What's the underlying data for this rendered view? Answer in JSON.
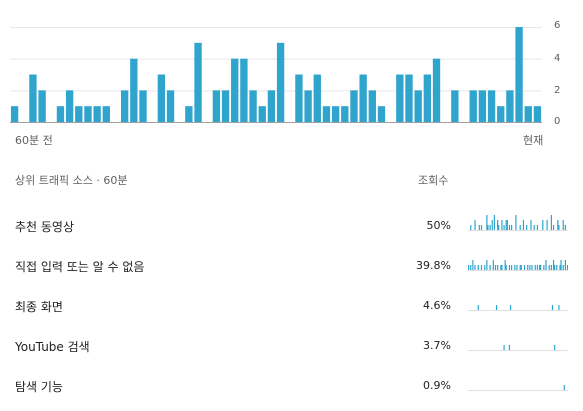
{
  "chart_data": {
    "type": "bar",
    "x_start_label": "60분 전",
    "x_end_label": "현재",
    "y_ticks": [
      "6",
      "4",
      "2",
      "0"
    ],
    "ylim": [
      0,
      6
    ],
    "grid": true,
    "color": "#2fa4cd",
    "values": [
      1,
      0,
      3,
      2,
      0,
      1,
      2,
      1,
      1,
      1,
      1,
      0,
      2,
      4,
      2,
      0,
      3,
      2,
      0,
      1,
      5,
      0,
      2,
      2,
      4,
      4,
      2,
      1,
      2,
      5,
      0,
      3,
      2,
      3,
      1,
      1,
      1,
      2,
      3,
      2,
      1,
      0,
      3,
      3,
      2,
      3,
      4,
      0,
      2,
      0,
      2,
      2,
      2,
      1,
      2,
      6,
      1,
      1
    ]
  },
  "table": {
    "header_left": "상위 트래픽 소스 · 60분",
    "header_right": "조회수",
    "rows": [
      {
        "label": "추천 동영상",
        "pct": "50%",
        "spark": [
          0,
          0,
          1,
          0,
          0,
          0,
          2,
          0,
          0,
          0,
          1,
          0,
          1,
          0,
          0,
          0,
          0,
          3,
          1,
          0,
          1,
          0,
          2,
          0,
          3,
          0,
          0,
          2,
          1,
          0,
          0,
          2,
          0,
          1,
          0,
          2,
          2,
          0,
          1,
          0,
          1,
          0,
          0,
          0,
          3,
          0,
          0,
          0,
          1,
          0,
          0,
          2,
          0,
          0,
          1,
          0,
          0,
          0,
          2,
          0,
          0,
          1,
          0,
          0,
          1,
          0,
          0,
          0,
          0,
          2,
          0,
          0,
          0,
          2,
          0,
          0,
          0,
          3,
          0,
          1,
          0,
          0,
          0,
          2,
          1,
          0,
          0,
          0,
          2,
          0,
          1,
          0,
          0
        ]
      },
      {
        "label": "직접 입력 또는 알 수 없음",
        "pct": "39.8%",
        "spark": [
          1,
          0,
          1,
          0,
          2,
          0,
          1,
          0,
          0,
          1,
          0,
          0,
          1,
          0,
          0,
          1,
          0,
          2,
          0,
          0,
          1,
          0,
          0,
          2,
          0,
          1,
          0,
          1,
          0,
          0,
          1,
          1,
          0,
          0,
          2,
          1,
          0,
          0,
          1,
          0,
          1,
          0,
          0,
          1,
          0,
          1,
          0,
          0,
          1,
          1,
          0,
          0,
          1,
          0,
          0,
          1,
          0,
          1,
          0,
          1,
          0,
          0,
          1,
          0,
          1,
          0,
          1,
          1,
          0,
          0,
          1,
          0,
          2,
          0,
          0,
          1,
          0,
          1,
          0,
          2,
          1,
          0,
          1,
          0,
          0,
          1,
          2,
          0,
          1,
          0,
          2,
          0,
          1
        ]
      },
      {
        "label": "최종 화면",
        "pct": "4.6%",
        "spark": [
          0,
          0,
          0,
          0,
          0,
          0,
          0,
          0,
          0,
          1,
          0,
          0,
          0,
          0,
          0,
          0,
          0,
          0,
          0,
          0,
          0,
          0,
          0,
          0,
          0,
          0,
          1,
          0,
          0,
          0,
          0,
          0,
          0,
          0,
          0,
          0,
          0,
          0,
          0,
          1,
          0,
          0,
          0,
          0,
          0,
          0,
          0,
          0,
          0,
          0,
          0,
          0,
          0,
          0,
          0,
          0,
          0,
          0,
          0,
          0,
          0,
          0,
          0,
          0,
          0,
          0,
          0,
          0,
          0,
          0,
          0,
          0,
          0,
          0,
          0,
          0,
          0,
          0,
          1,
          0,
          0,
          0,
          0,
          0,
          1,
          0,
          0,
          0,
          0,
          0,
          0,
          0,
          0
        ]
      },
      {
        "label": "YouTube 검색",
        "pct": "3.7%",
        "spark": [
          0,
          0,
          0,
          0,
          0,
          0,
          0,
          0,
          0,
          0,
          0,
          0,
          0,
          0,
          0,
          0,
          0,
          0,
          0,
          0,
          0,
          0,
          0,
          0,
          0,
          0,
          0,
          0,
          0,
          0,
          0,
          0,
          0,
          1,
          0,
          0,
          0,
          0,
          1,
          0,
          0,
          0,
          0,
          0,
          0,
          0,
          0,
          0,
          0,
          0,
          0,
          0,
          0,
          0,
          0,
          0,
          0,
          0,
          0,
          0,
          0,
          0,
          0,
          0,
          0,
          0,
          0,
          0,
          0,
          0,
          0,
          0,
          0,
          0,
          0,
          0,
          0,
          0,
          0,
          0,
          1,
          0,
          0,
          0,
          0,
          0,
          0,
          0,
          0,
          0,
          0,
          0,
          0
        ]
      },
      {
        "label": "탐색 기능",
        "pct": "0.9%",
        "spark": [
          0,
          0,
          0,
          0,
          0,
          0,
          0,
          0,
          0,
          0,
          0,
          0,
          0,
          0,
          0,
          0,
          0,
          0,
          0,
          0,
          0,
          0,
          0,
          0,
          0,
          0,
          0,
          0,
          0,
          0,
          0,
          0,
          0,
          0,
          0,
          0,
          0,
          0,
          0,
          0,
          0,
          0,
          0,
          0,
          0,
          0,
          0,
          0,
          0,
          0,
          0,
          0,
          0,
          0,
          0,
          0,
          0,
          0,
          0,
          0,
          0,
          0,
          0,
          0,
          0,
          0,
          0,
          0,
          0,
          0,
          0,
          0,
          0,
          0,
          0,
          0,
          0,
          0,
          0,
          0,
          0,
          0,
          0,
          0,
          0,
          0,
          0,
          0,
          0,
          1,
          0,
          0,
          0
        ]
      }
    ]
  }
}
